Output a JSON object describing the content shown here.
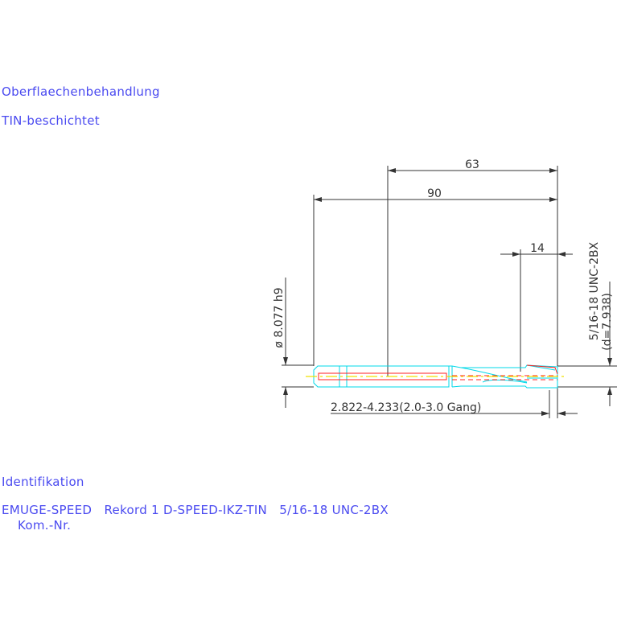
{
  "notes": {
    "surface_label": "Oberflaechenbehandlung",
    "surface_value": "TIN-beschichtet",
    "ident_label": "Identifikation",
    "ident_value": "EMUGE-SPEED   Rekord 1 D-SPEED-IKZ-TIN   5/16-18 UNC-2BX",
    "kom_label": "Kom.-Nr."
  },
  "dimensions": {
    "overall_length": "90",
    "shank_length": "63",
    "thread_length": "14",
    "shank_diameter": "ø 8.077 h9",
    "thread_spec": "5/16-18 UNC-2BX",
    "thread_diameter": "(d=7.938)",
    "chamfer": "2.822-4.233(2.0-3.0 Gang)"
  },
  "colors": {
    "text": "#4a4af0",
    "dimension": "#333333",
    "outline": "#00d8e8",
    "hidden": "#ff2020",
    "centerline": "#f0e000"
  }
}
